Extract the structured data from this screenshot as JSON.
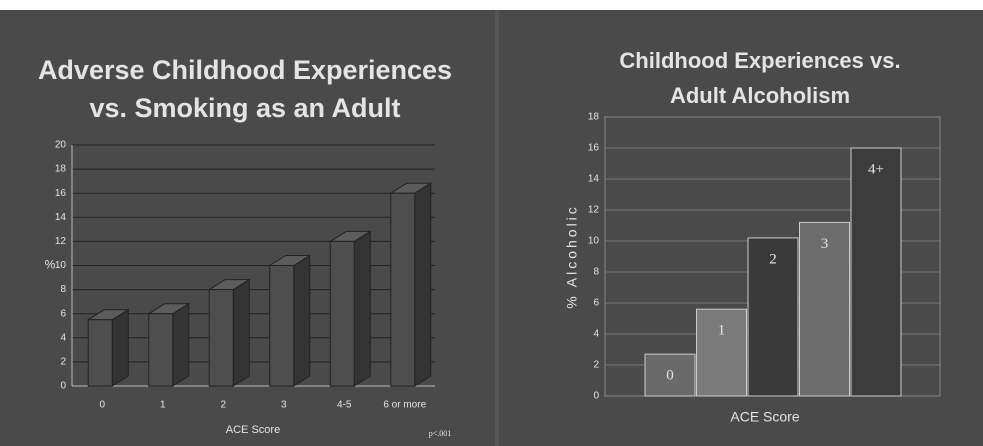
{
  "chart_data": [
    {
      "type": "bar3d",
      "title": [
        "Adverse Childhood Experiences",
        "vs. Smoking as an Adult"
      ],
      "categories": [
        "0",
        "1",
        "2",
        "3",
        "4-5",
        "6 or more"
      ],
      "values": [
        5.5,
        6,
        8,
        10,
        12,
        16
      ],
      "color": "#4e4e4e",
      "ylim": [
        0,
        20
      ],
      "yticks": [
        0,
        2,
        4,
        6,
        8,
        10,
        12,
        14,
        16,
        18,
        20
      ],
      "grid": true,
      "ylabel": "%",
      "xlabel": "ACE Score",
      "annotation": "p<.001"
    },
    {
      "type": "bar",
      "title": [
        "Childhood Experiences vs.",
        "Adult Alcoholism"
      ],
      "categories": [
        "0",
        "1",
        "2",
        "3",
        "4+"
      ],
      "values": [
        2.7,
        5.6,
        10.2,
        11.2,
        16
      ],
      "colors": [
        "#6a6a6a",
        "#7a7a7a",
        "#3a3a3a",
        "#6c6c6c",
        "#3c3c3c"
      ],
      "ylim": [
        0,
        18
      ],
      "yticks": [
        0,
        2,
        4,
        6,
        8,
        10,
        12,
        14,
        16,
        18
      ],
      "grid": true,
      "ylabel": "% Alcoholic",
      "xlabel": "ACE Score"
    }
  ]
}
